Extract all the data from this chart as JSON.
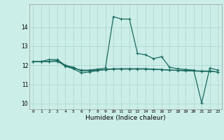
{
  "title": "",
  "xlabel": "Humidex (Indice chaleur)",
  "bg_color": "#cceee8",
  "line_color": "#1a6b60",
  "grid_color": "#aad4ce",
  "xlim": [
    -0.5,
    23.5
  ],
  "ylim": [
    9.7,
    15.2
  ],
  "yticks": [
    10,
    11,
    12,
    13,
    14
  ],
  "xticks": [
    0,
    1,
    2,
    3,
    4,
    5,
    6,
    7,
    8,
    9,
    10,
    11,
    12,
    13,
    14,
    15,
    16,
    17,
    18,
    19,
    20,
    21,
    22,
    23
  ],
  "line1": [
    12.2,
    12.2,
    12.3,
    12.3,
    12.0,
    11.85,
    11.75,
    11.75,
    11.8,
    11.85,
    14.55,
    14.42,
    14.42,
    12.62,
    12.55,
    12.35,
    12.45,
    11.9,
    11.82,
    11.78,
    11.75,
    10.02,
    11.85,
    11.75
  ],
  "line2": [
    12.2,
    12.2,
    12.2,
    12.25,
    11.95,
    11.82,
    11.6,
    11.65,
    11.72,
    11.78,
    11.82,
    11.82,
    11.82,
    11.82,
    11.82,
    11.8,
    11.78,
    11.75,
    11.73,
    11.71,
    11.7,
    11.68,
    11.68,
    11.65
  ],
  "line3": [
    12.2,
    12.2,
    12.2,
    12.2,
    12.0,
    11.9,
    11.7,
    11.72,
    11.75,
    11.77,
    11.8,
    11.8,
    11.8,
    11.8,
    11.8,
    11.78,
    11.77,
    11.75,
    11.74,
    11.73,
    11.72,
    11.7,
    11.7,
    11.65
  ]
}
